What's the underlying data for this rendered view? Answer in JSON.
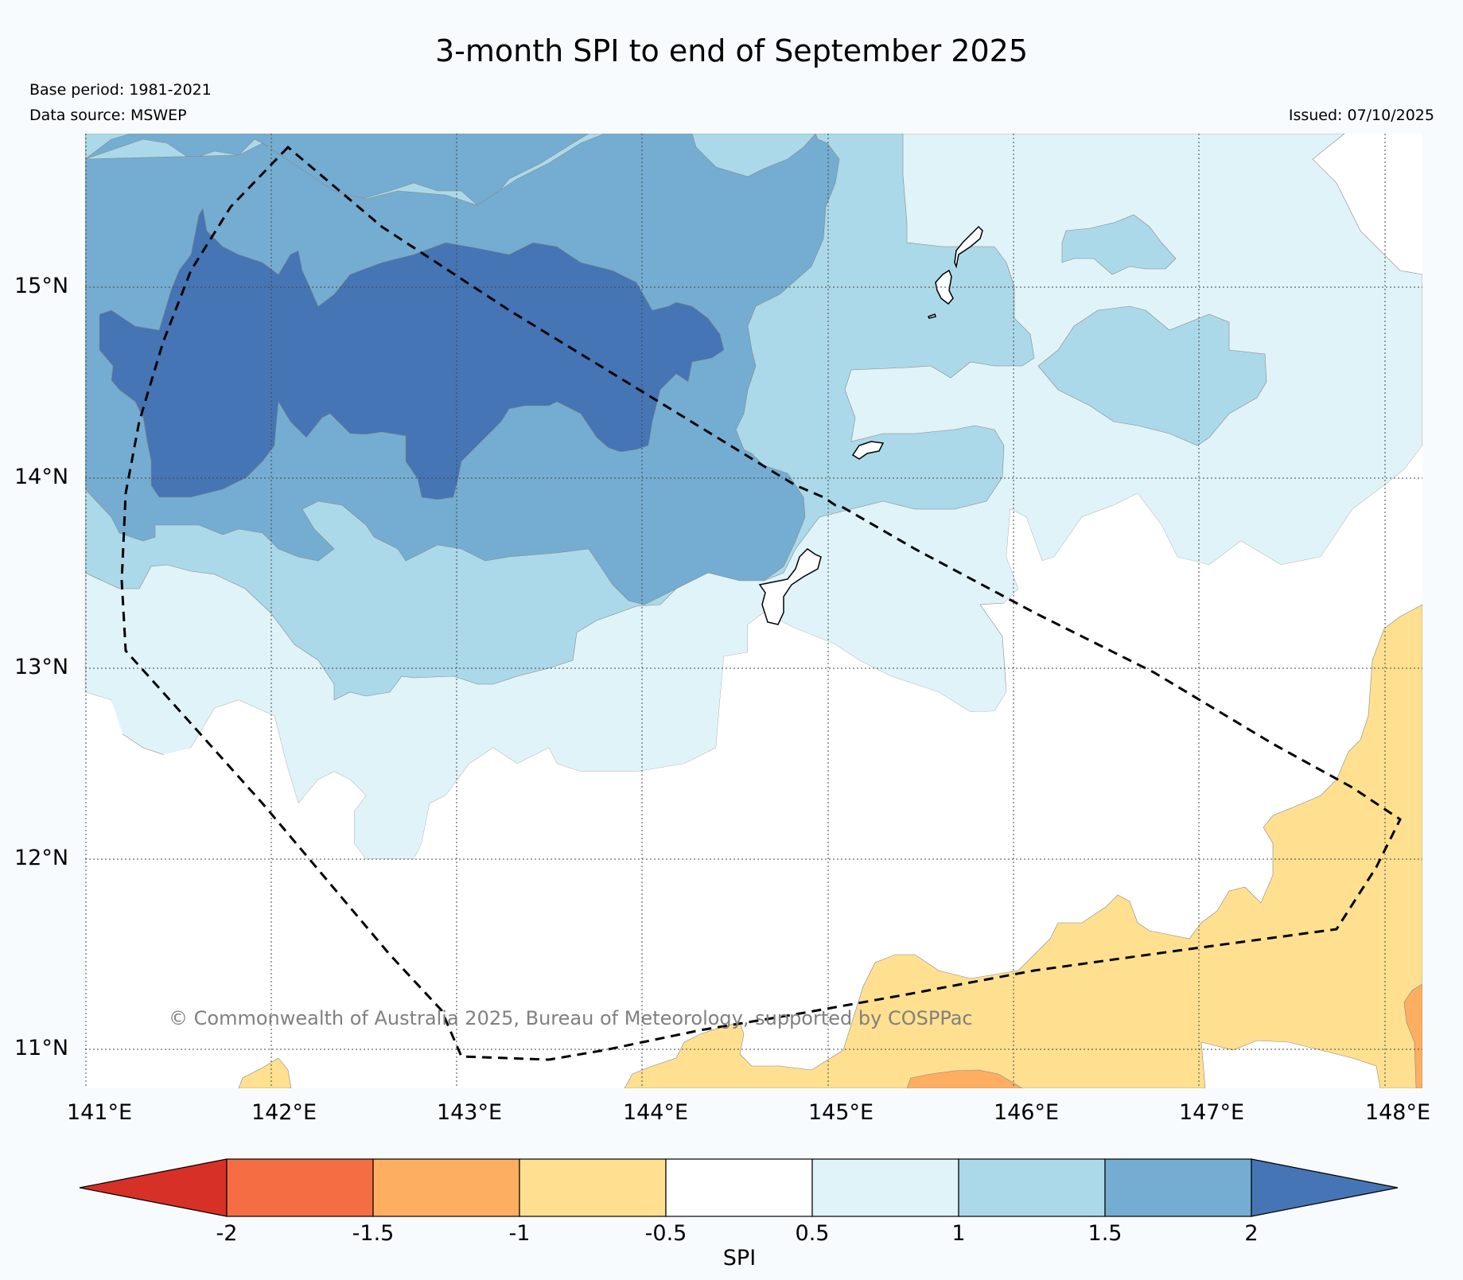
{
  "title": "3-month SPI to end of September 2025",
  "base_period": "Base period: 1981-2021",
  "data_source": "Data source: MSWEP",
  "issued": "Issued: 07/10/2025",
  "copyright": "© Commonwealth of Australia 2025, Bureau of Meteorology, supported by COSPPac",
  "map": {
    "lat_labels": [
      "15°N",
      "14°N",
      "13°N",
      "12°N",
      "11°N"
    ],
    "lon_labels": [
      "141°E",
      "142°E",
      "143°E",
      "144°E",
      "145°E",
      "146°E",
      "147°E",
      "148°E"
    ]
  },
  "colorbar": {
    "label": "SPI",
    "ticks": [
      "-2",
      "-1.5",
      "-1",
      "-0.5",
      "0.5",
      "1",
      "1.5",
      "2"
    ],
    "colors": {
      "below_-2": "#d73027",
      "-2_-1.5": "#f46d43",
      "-1.5_-1": "#fdae61",
      "-1_-0.5": "#fee090",
      "-0.5_0.5": "#ffffff",
      "0.5_1": "#e0f3f8",
      "1_1.5": "#abd9e9",
      "1.5_2": "#74add1",
      "above_2": "#4575b4"
    }
  }
}
